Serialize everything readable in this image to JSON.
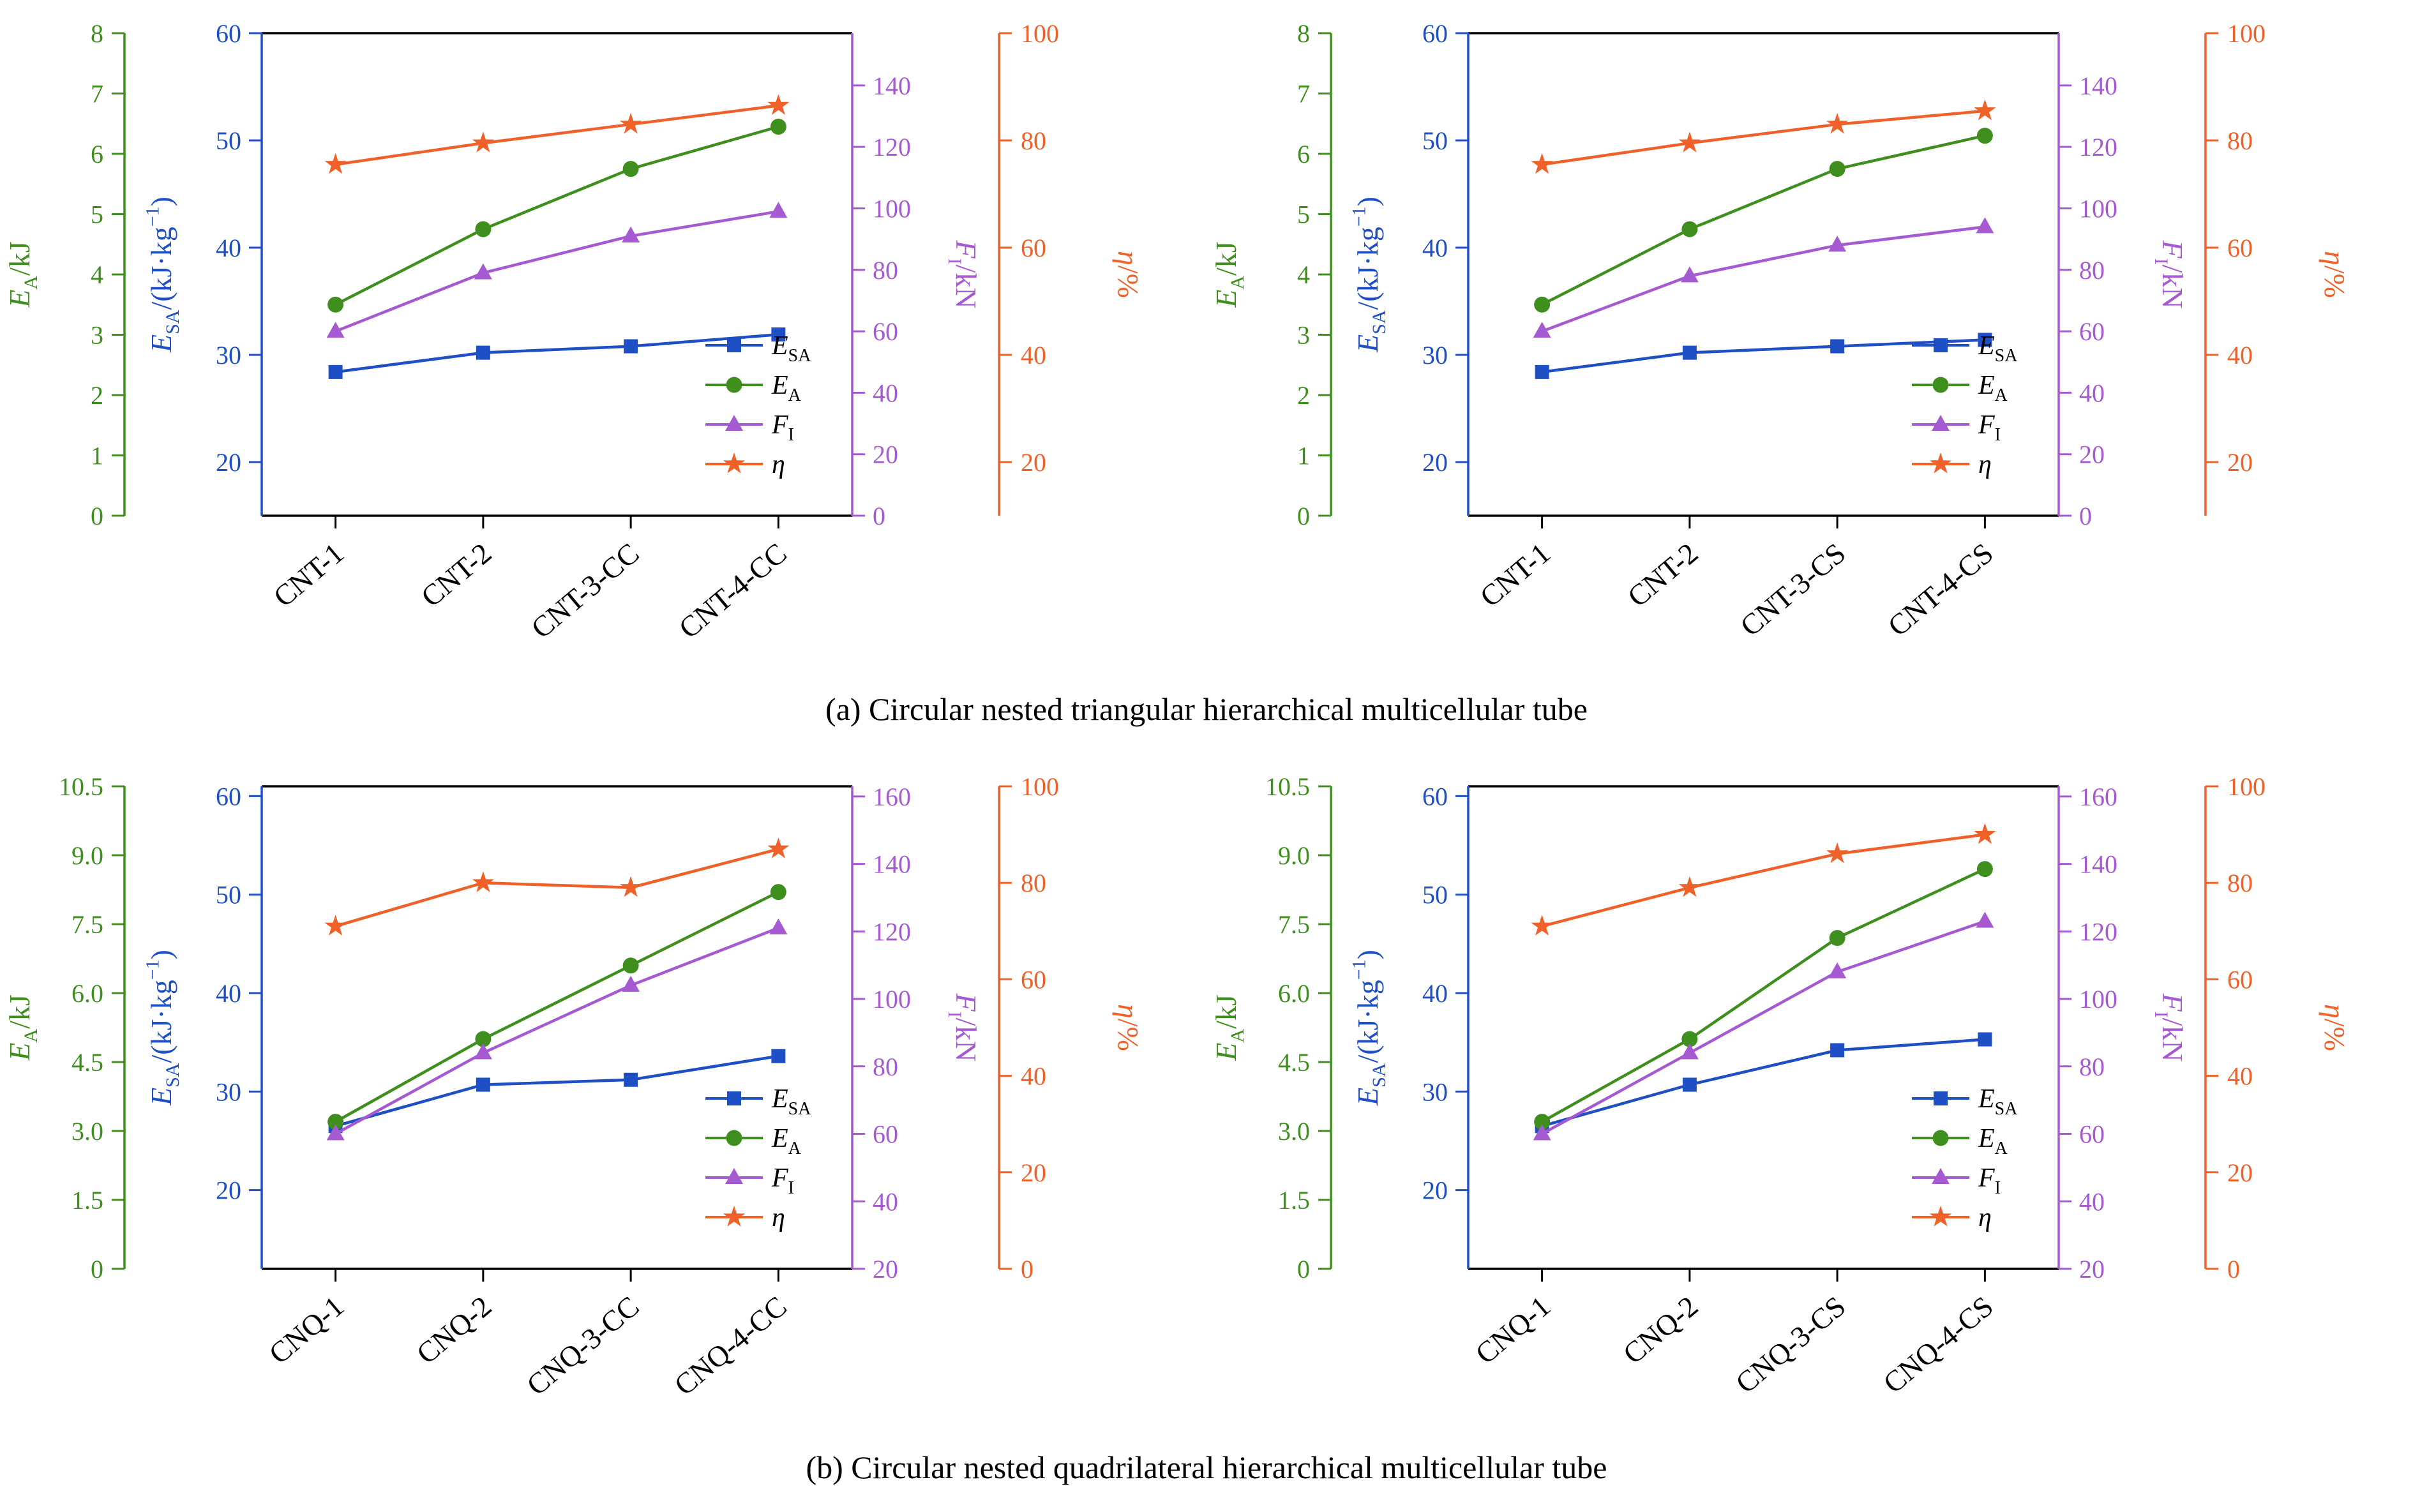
{
  "figure": {
    "captions": {
      "a": "(a) Circular nested triangular hierarchical multicellular tube",
      "b": "(b) Circular nested quadrilateral hierarchical multicellular tube"
    }
  },
  "colors": {
    "green": "#3f8f1f",
    "blue": "#1e4fc4",
    "purple": "#a55ad2",
    "orange": "#ef6128",
    "black": "#000000"
  },
  "chart_data": [
    {
      "type": "line",
      "categories": [
        "CNT-1",
        "CNT-2",
        "CNT-3-CC",
        "CNT-4-CC"
      ],
      "axes": {
        "green": {
          "label_rich": [
            {
              "t": "E",
              "i": true
            },
            {
              "t": "A",
              "sub": true
            },
            {
              "t": "/kJ"
            }
          ],
          "min": 0,
          "max": 8,
          "ticks": [
            "0",
            "1",
            "2",
            "3",
            "4",
            "5",
            "6",
            "7",
            "8"
          ]
        },
        "blue": {
          "label_rich": [
            {
              "t": "E",
              "i": true
            },
            {
              "t": "SA",
              "sub": true
            },
            {
              "t": "/(kJ·kg",
              "i": false
            },
            {
              "t": "−1",
              "sup": true
            },
            {
              "t": ")"
            }
          ],
          "min": 15,
          "max": 60,
          "ticks": [
            "20",
            "30",
            "40",
            "50",
            "60"
          ]
        },
        "purple": {
          "label_rich": [
            {
              "t": "F",
              "i": true
            },
            {
              "t": "I",
              "sub": true
            },
            {
              "t": "/kN"
            }
          ],
          "min": 0,
          "max": 157,
          "ticks": [
            "0",
            "20",
            "40",
            "60",
            "80",
            "100",
            "120",
            "140"
          ]
        },
        "orange": {
          "label_rich": [
            {
              "t": "η",
              "i": true
            },
            {
              "t": "/%"
            }
          ],
          "min": 10,
          "max": 100,
          "ticks": [
            "20",
            "40",
            "60",
            "80",
            "100"
          ]
        }
      },
      "series": [
        {
          "name": "ESA",
          "axis": "blue",
          "marker": "square",
          "label_rich": [
            {
              "t": "E",
              "i": true
            },
            {
              "t": "SA",
              "sub": true
            }
          ],
          "values": [
            28.4,
            30.2,
            30.8,
            31.9
          ]
        },
        {
          "name": "EA",
          "axis": "green",
          "marker": "circle",
          "label_rich": [
            {
              "t": "E",
              "i": true
            },
            {
              "t": "A",
              "sub": true
            }
          ],
          "values": [
            3.5,
            4.75,
            5.75,
            6.45
          ]
        },
        {
          "name": "FI",
          "axis": "purple",
          "marker": "triangle",
          "label_rich": [
            {
              "t": "F",
              "i": true
            },
            {
              "t": "I",
              "sub": true
            }
          ],
          "values": [
            60,
            79,
            91,
            99
          ]
        },
        {
          "name": "eta",
          "axis": "orange",
          "marker": "star",
          "label_rich": [
            {
              "t": "η",
              "i": true
            }
          ],
          "values": [
            75.5,
            79.5,
            83,
            86.5
          ]
        }
      ]
    },
    {
      "type": "line",
      "categories": [
        "CNT-1",
        "CNT-2",
        "CNT-3-CS",
        "CNT-4-CS"
      ],
      "axes": {
        "green": {
          "label_rich": [
            {
              "t": "E",
              "i": true
            },
            {
              "t": "A",
              "sub": true
            },
            {
              "t": "/kJ"
            }
          ],
          "min": 0,
          "max": 8,
          "ticks": [
            "0",
            "1",
            "2",
            "3",
            "4",
            "5",
            "6",
            "7",
            "8"
          ]
        },
        "blue": {
          "label_rich": [
            {
              "t": "E",
              "i": true
            },
            {
              "t": "SA",
              "sub": true
            },
            {
              "t": "/(kJ·kg"
            },
            {
              "t": "−1",
              "sup": true
            },
            {
              "t": ")"
            }
          ],
          "min": 15,
          "max": 60,
          "ticks": [
            "20",
            "30",
            "40",
            "50",
            "60"
          ]
        },
        "purple": {
          "label_rich": [
            {
              "t": "F",
              "i": true
            },
            {
              "t": "I",
              "sub": true
            },
            {
              "t": "/kN"
            }
          ],
          "min": 0,
          "max": 157,
          "ticks": [
            "0",
            "20",
            "40",
            "60",
            "80",
            "100",
            "120",
            "140"
          ]
        },
        "orange": {
          "label_rich": [
            {
              "t": "η",
              "i": true
            },
            {
              "t": "/%"
            }
          ],
          "min": 10,
          "max": 100,
          "ticks": [
            "20",
            "40",
            "60",
            "80",
            "100"
          ]
        }
      },
      "series": [
        {
          "name": "ESA",
          "axis": "blue",
          "marker": "square",
          "label_rich": [
            {
              "t": "E",
              "i": true
            },
            {
              "t": "SA",
              "sub": true
            }
          ],
          "values": [
            28.4,
            30.2,
            30.8,
            31.4
          ]
        },
        {
          "name": "EA",
          "axis": "green",
          "marker": "circle",
          "label_rich": [
            {
              "t": "E",
              "i": true
            },
            {
              "t": "A",
              "sub": true
            }
          ],
          "values": [
            3.5,
            4.75,
            5.75,
            6.3
          ]
        },
        {
          "name": "FI",
          "axis": "purple",
          "marker": "triangle",
          "label_rich": [
            {
              "t": "F",
              "i": true
            },
            {
              "t": "I",
              "sub": true
            }
          ],
          "values": [
            60,
            78,
            88,
            94
          ]
        },
        {
          "name": "eta",
          "axis": "orange",
          "marker": "star",
          "label_rich": [
            {
              "t": "η",
              "i": true
            }
          ],
          "values": [
            75.5,
            79.5,
            83,
            85.5
          ]
        }
      ]
    },
    {
      "type": "line",
      "categories": [
        "CNQ-1",
        "CNQ-2",
        "CNQ-3-CC",
        "CNQ-4-CC"
      ],
      "axes": {
        "green": {
          "label_rich": [
            {
              "t": "E",
              "i": true
            },
            {
              "t": "A",
              "sub": true
            },
            {
              "t": "/kJ"
            }
          ],
          "min": 0,
          "max": 10.5,
          "ticks": [
            "0",
            "1.5",
            "3.0",
            "4.5",
            "6.0",
            "7.5",
            "9.0",
            "10.5"
          ]
        },
        "blue": {
          "label_rich": [
            {
              "t": "E",
              "i": true
            },
            {
              "t": "SA",
              "sub": true
            },
            {
              "t": "/(kJ·kg"
            },
            {
              "t": "−1",
              "sup": true
            },
            {
              "t": ")"
            }
          ],
          "min": 12,
          "max": 61,
          "ticks": [
            "20",
            "30",
            "40",
            "50",
            "60"
          ]
        },
        "purple": {
          "label_rich": [
            {
              "t": "F",
              "i": true
            },
            {
              "t": "I",
              "sub": true
            },
            {
              "t": "/kN"
            }
          ],
          "min": 20,
          "max": 163,
          "ticks": [
            "20",
            "40",
            "60",
            "80",
            "100",
            "120",
            "140",
            "160"
          ]
        },
        "orange": {
          "label_rich": [
            {
              "t": "η",
              "i": true
            },
            {
              "t": "/%"
            }
          ],
          "min": 0,
          "max": 100,
          "ticks": [
            "0",
            "20",
            "40",
            "60",
            "80",
            "100"
          ]
        }
      },
      "series": [
        {
          "name": "ESA",
          "axis": "blue",
          "marker": "square",
          "label_rich": [
            {
              "t": "E",
              "i": true
            },
            {
              "t": "SA",
              "sub": true
            }
          ],
          "values": [
            26.5,
            30.7,
            31.2,
            33.6
          ]
        },
        {
          "name": "EA",
          "axis": "green",
          "marker": "circle",
          "label_rich": [
            {
              "t": "E",
              "i": true
            },
            {
              "t": "A",
              "sub": true
            }
          ],
          "values": [
            3.2,
            5.0,
            6.6,
            8.2
          ]
        },
        {
          "name": "FI",
          "axis": "purple",
          "marker": "triangle",
          "label_rich": [
            {
              "t": "F",
              "i": true
            },
            {
              "t": "I",
              "sub": true
            }
          ],
          "values": [
            60,
            84,
            104,
            121
          ]
        },
        {
          "name": "eta",
          "axis": "orange",
          "marker": "star",
          "label_rich": [
            {
              "t": "η",
              "i": true
            }
          ],
          "values": [
            71,
            80,
            79,
            87
          ]
        }
      ]
    },
    {
      "type": "line",
      "categories": [
        "CNQ-1",
        "CNQ-2",
        "CNQ-3-CS",
        "CNQ-4-CS"
      ],
      "axes": {
        "green": {
          "label_rich": [
            {
              "t": "E",
              "i": true
            },
            {
              "t": "A",
              "sub": true
            },
            {
              "t": "/kJ"
            }
          ],
          "min": 0,
          "max": 10.5,
          "ticks": [
            "0",
            "1.5",
            "3.0",
            "4.5",
            "6.0",
            "7.5",
            "9.0",
            "10.5"
          ]
        },
        "blue": {
          "label_rich": [
            {
              "t": "E",
              "i": true
            },
            {
              "t": "SA",
              "sub": true
            },
            {
              "t": "/(kJ·kg"
            },
            {
              "t": "−1",
              "sup": true
            },
            {
              "t": ")"
            }
          ],
          "min": 12,
          "max": 61,
          "ticks": [
            "20",
            "30",
            "40",
            "50",
            "60"
          ]
        },
        "purple": {
          "label_rich": [
            {
              "t": "F",
              "i": true
            },
            {
              "t": "I",
              "sub": true
            },
            {
              "t": "/kN"
            }
          ],
          "min": 20,
          "max": 163,
          "ticks": [
            "20",
            "40",
            "60",
            "80",
            "100",
            "120",
            "140",
            "160"
          ]
        },
        "orange": {
          "label_rich": [
            {
              "t": "η",
              "i": true
            },
            {
              "t": "/%"
            }
          ],
          "min": 0,
          "max": 100,
          "ticks": [
            "0",
            "20",
            "40",
            "60",
            "80",
            "100"
          ]
        }
      },
      "series": [
        {
          "name": "ESA",
          "axis": "blue",
          "marker": "square",
          "label_rich": [
            {
              "t": "E",
              "i": true
            },
            {
              "t": "SA",
              "sub": true
            }
          ],
          "values": [
            26.5,
            30.7,
            34.2,
            35.3
          ]
        },
        {
          "name": "EA",
          "axis": "green",
          "marker": "circle",
          "label_rich": [
            {
              "t": "E",
              "i": true
            },
            {
              "t": "A",
              "sub": true
            }
          ],
          "values": [
            3.2,
            5.0,
            7.2,
            8.7
          ]
        },
        {
          "name": "FI",
          "axis": "purple",
          "marker": "triangle",
          "label_rich": [
            {
              "t": "F",
              "i": true
            },
            {
              "t": "I",
              "sub": true
            }
          ],
          "values": [
            60,
            84,
            108,
            123
          ]
        },
        {
          "name": "eta",
          "axis": "orange",
          "marker": "star",
          "label_rich": [
            {
              "t": "η",
              "i": true
            }
          ],
          "values": [
            71,
            79,
            86,
            90
          ]
        }
      ]
    }
  ]
}
